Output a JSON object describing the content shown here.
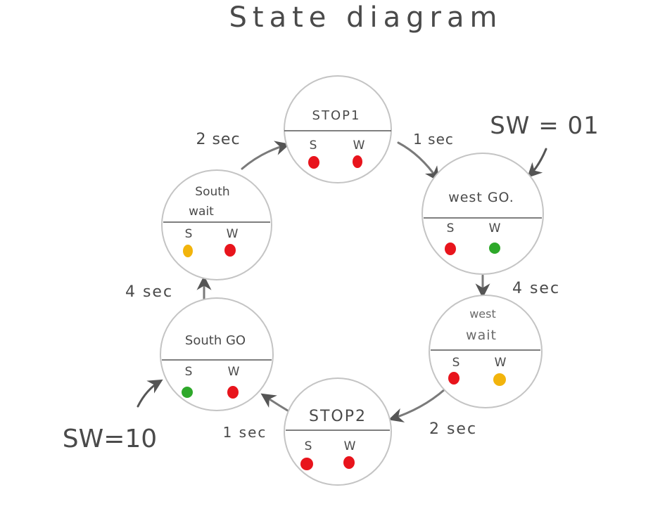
{
  "title": "State diagram",
  "colors": {
    "red": "#e8141c",
    "green": "#2ea82a",
    "yellow": "#f2b40c"
  },
  "states": [
    {
      "id": "stop1",
      "label_lines": [
        "STOP1"
      ],
      "s_label": "S",
      "w_label": "W",
      "s_light": "red",
      "w_light": "red"
    },
    {
      "id": "west-go",
      "label_lines": [
        "west GO."
      ],
      "s_label": "S",
      "w_label": "W",
      "s_light": "red",
      "w_light": "green"
    },
    {
      "id": "west-wait",
      "label_lines": [
        "west",
        "wait"
      ],
      "s_label": "S",
      "w_label": "W",
      "s_light": "red",
      "w_light": "yellow"
    },
    {
      "id": "stop2",
      "label_lines": [
        "STOP2"
      ],
      "s_label": "S",
      "w_label": "W",
      "s_light": "red",
      "w_light": "red"
    },
    {
      "id": "south-go",
      "label_lines": [
        "South GO"
      ],
      "s_label": "S",
      "w_label": "W",
      "s_light": "green",
      "w_light": "red"
    },
    {
      "id": "south-wait",
      "label_lines": [
        "South",
        "wait"
      ],
      "s_label": "S",
      "w_label": "W",
      "s_light": "yellow",
      "w_light": "red"
    }
  ],
  "transitions": [
    {
      "from": "stop1",
      "to": "west-go",
      "label": "1 sec"
    },
    {
      "from": "west-go",
      "to": "west-wait",
      "label": "4 sec"
    },
    {
      "from": "west-wait",
      "to": "stop2",
      "label": "2 sec"
    },
    {
      "from": "stop2",
      "to": "south-go",
      "label": "1 sec"
    },
    {
      "from": "south-go",
      "to": "south-wait",
      "label": "4 sec"
    },
    {
      "from": "south-wait",
      "to": "stop1",
      "label": "2 sec"
    }
  ],
  "conditions": [
    {
      "target": "west-go",
      "label": "SW = 01"
    },
    {
      "target": "south-go",
      "label": "SW=10"
    }
  ]
}
